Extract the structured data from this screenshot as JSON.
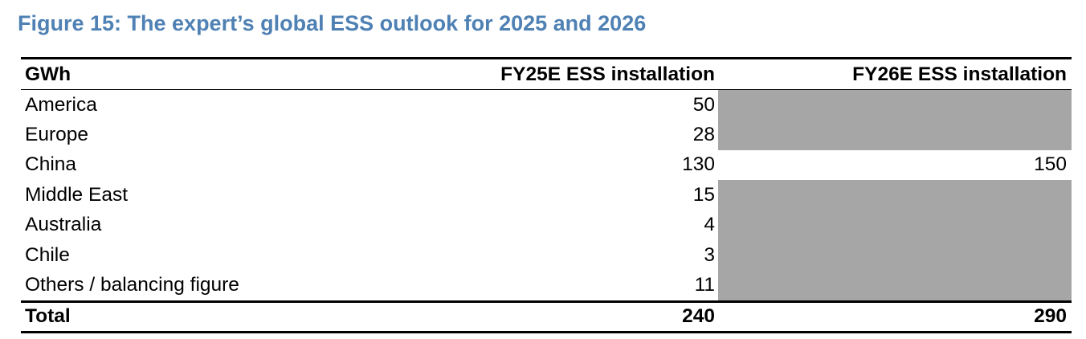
{
  "title": "Figure 15: The expert’s global ESS outlook for 2025 and 2026",
  "table": {
    "headers": [
      "GWh",
      "FY25E ESS installation",
      "FY26E ESS installation"
    ],
    "rows": [
      {
        "label": "America",
        "fy25": "50",
        "fy26": ""
      },
      {
        "label": "Europe",
        "fy25": "28",
        "fy26": ""
      },
      {
        "label": "China",
        "fy25": "130",
        "fy26": "150"
      },
      {
        "label": "Middle East",
        "fy25": "15",
        "fy26": ""
      },
      {
        "label": "Australia",
        "fy25": "4",
        "fy26": ""
      },
      {
        "label": "Chile",
        "fy25": "3",
        "fy26": ""
      },
      {
        "label": "Others / balancing figure",
        "fy25": "11",
        "fy26": ""
      }
    ],
    "total": {
      "label": "Total",
      "fy25": "240",
      "fy26": "290"
    },
    "shade_color": "#a6a6a6",
    "title_color": "#4f81b4"
  }
}
